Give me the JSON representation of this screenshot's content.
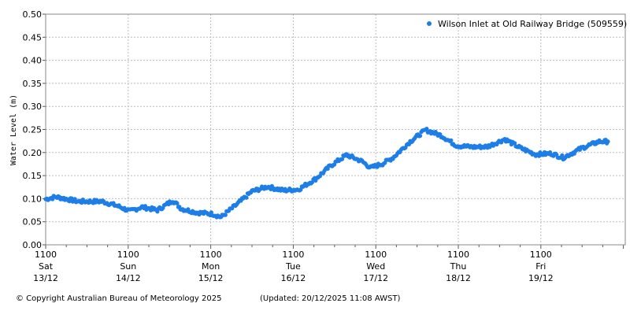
{
  "chart_data": {
    "type": "scatter",
    "title": "",
    "ylabel": "Water Level (m)",
    "xlabel": "",
    "ylim": [
      0,
      0.5
    ],
    "yticks": [
      "0.00",
      "0.05",
      "0.10",
      "0.15",
      "0.20",
      "0.25",
      "0.30",
      "0.35",
      "0.40",
      "0.45",
      "0.50"
    ],
    "xlim": [
      "2025-12-13 11:00",
      "2025-12-20 11:00"
    ],
    "xticks": [
      {
        "time": "1100",
        "day": "Sat",
        "date": "13/12"
      },
      {
        "time": "1100",
        "day": "Sun",
        "date": "14/12"
      },
      {
        "time": "1100",
        "day": "Mon",
        "date": "15/12"
      },
      {
        "time": "1100",
        "day": "Tue",
        "date": "16/12"
      },
      {
        "time": "1100",
        "day": "Wed",
        "date": "17/12"
      },
      {
        "time": "1100",
        "day": "Thu",
        "date": "18/12"
      },
      {
        "time": "1100",
        "day": "Fri",
        "date": "19/12"
      }
    ],
    "grid": true,
    "legend_placement": "top-right",
    "series": [
      {
        "name": "Wilson Inlet at Old Railway Bridge (509559)",
        "color": "#1e7ee8",
        "points": [
          [
            "2025-12-13 11:00",
            0.099
          ],
          [
            "2025-12-13 14:00",
            0.104
          ],
          [
            "2025-12-13 20:30",
            0.094
          ],
          [
            "2025-12-14 03:30",
            0.094
          ],
          [
            "2025-12-14 08:00",
            0.084
          ],
          [
            "2025-12-14 11:30",
            0.073
          ],
          [
            "2025-12-14 15:00",
            0.082
          ],
          [
            "2025-12-14 19:30",
            0.075
          ],
          [
            "2025-12-15 00:00",
            0.096
          ],
          [
            "2025-12-15 02:30",
            0.078
          ],
          [
            "2025-12-15 07:00",
            0.07
          ],
          [
            "2025-12-15 11:30",
            0.067
          ],
          [
            "2025-12-15 14:00",
            0.06
          ],
          [
            "2025-12-15 18:30",
            0.087
          ],
          [
            "2025-12-15 23:00",
            0.116
          ],
          [
            "2025-12-16 03:30",
            0.126
          ],
          [
            "2025-12-16 08:00",
            0.118
          ],
          [
            "2025-12-16 12:30",
            0.12
          ],
          [
            "2025-12-16 17:30",
            0.143
          ],
          [
            "2025-12-16 22:00",
            0.172
          ],
          [
            "2025-12-17 02:30",
            0.195
          ],
          [
            "2025-12-17 07:00",
            0.181
          ],
          [
            "2025-12-17 09:30",
            0.167
          ],
          [
            "2025-12-17 13:00",
            0.176
          ],
          [
            "2025-12-17 16:00",
            0.189
          ],
          [
            "2025-12-17 21:00",
            0.224
          ],
          [
            "2025-12-18 01:30",
            0.249
          ],
          [
            "2025-12-18 06:00",
            0.237
          ],
          [
            "2025-12-18 10:30",
            0.215
          ],
          [
            "2025-12-18 15:00",
            0.212
          ],
          [
            "2025-12-18 19:30",
            0.213
          ],
          [
            "2025-12-19 00:30",
            0.229
          ],
          [
            "2025-12-19 05:00",
            0.21
          ],
          [
            "2025-12-19 09:30",
            0.196
          ],
          [
            "2025-12-19 14:00",
            0.198
          ],
          [
            "2025-12-19 17:30",
            0.189
          ],
          [
            "2025-12-19 23:00",
            0.21
          ],
          [
            "2025-12-20 04:00",
            0.224
          ],
          [
            "2025-12-20 06:30",
            0.224
          ]
        ]
      }
    ]
  },
  "footer": {
    "copyright": "© Copyright Australian Bureau of Meteorology 2025",
    "updated": "(Updated: 20/12/2025 11:08 AWST)"
  }
}
